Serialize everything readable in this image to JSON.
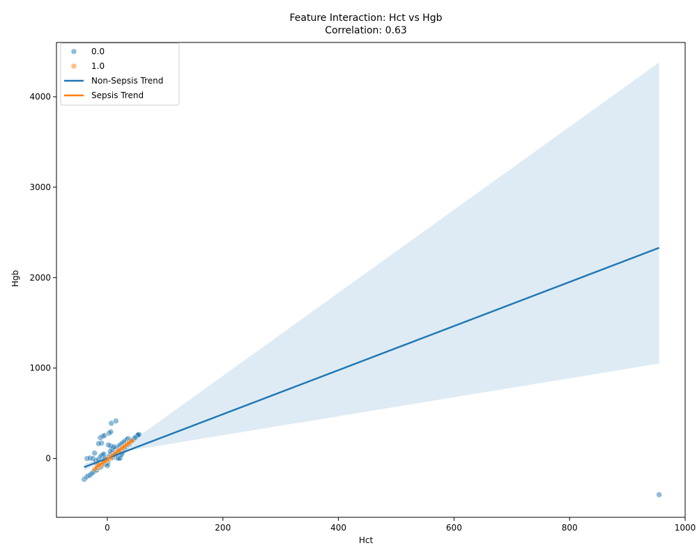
{
  "chart_data": {
    "type": "scatter",
    "title": "Feature Interaction: Hct vs Hgb",
    "subtitle": "Correlation: 0.63",
    "xlabel": "Hct",
    "ylabel": "Hgb",
    "xlim": [
      -88,
      1000
    ],
    "ylim": [
      -650,
      4600
    ],
    "xticks": [
      0,
      200,
      400,
      600,
      800,
      1000
    ],
    "yticks": [
      0,
      1000,
      2000,
      3000,
      4000
    ],
    "grid": false,
    "legend_position": "upper-left",
    "legend": [
      {
        "label": "0.0",
        "kind": "marker",
        "color": "#1f77b4"
      },
      {
        "label": "1.0",
        "kind": "marker",
        "color": "#ff7f0e"
      },
      {
        "label": "Non-Sepsis Trend",
        "kind": "line",
        "color": "#1f77b4"
      },
      {
        "label": "Sepsis Trend",
        "kind": "line",
        "color": "#ff7f0e"
      }
    ],
    "series": [
      {
        "label": "0.0",
        "color": "#1f77b4",
        "points": [
          [
            -40,
            -230
          ],
          [
            -36,
            -205
          ],
          [
            -33,
            -190
          ],
          [
            -30,
            -185
          ],
          [
            -28,
            -170
          ],
          [
            -26,
            -160
          ],
          [
            -24,
            -150
          ],
          [
            -22,
            -140
          ],
          [
            -20,
            -130
          ],
          [
            -18,
            -125
          ],
          [
            -16,
            -110
          ],
          [
            -14,
            -100
          ],
          [
            -12,
            -95
          ],
          [
            -10,
            -85
          ],
          [
            -8,
            -70
          ],
          [
            -6,
            -60
          ],
          [
            -4,
            -50
          ],
          [
            -2,
            -40
          ],
          [
            0,
            -30
          ],
          [
            2,
            -20
          ],
          [
            -35,
            0
          ],
          [
            -30,
            5
          ],
          [
            -25,
            0
          ],
          [
            -22,
            60
          ],
          [
            -20,
            -20
          ],
          [
            -15,
            -10
          ],
          [
            -12,
            20
          ],
          [
            -10,
            30
          ],
          [
            -8,
            40
          ],
          [
            -6,
            50
          ],
          [
            -5,
            -5
          ],
          [
            -3,
            10
          ],
          [
            -1,
            0
          ],
          [
            1,
            -60
          ],
          [
            3,
            15
          ],
          [
            4,
            30
          ],
          [
            6,
            45
          ],
          [
            8,
            60
          ],
          [
            10,
            75
          ],
          [
            12,
            90
          ],
          [
            14,
            100
          ],
          [
            16,
            110
          ],
          [
            18,
            120
          ],
          [
            20,
            140
          ],
          [
            22,
            150
          ],
          [
            24,
            160
          ],
          [
            26,
            170
          ],
          [
            28,
            180
          ],
          [
            30,
            190
          ],
          [
            32,
            200
          ],
          [
            34,
            210
          ],
          [
            36,
            220
          ],
          [
            38,
            195
          ],
          [
            40,
            205
          ],
          [
            12,
            20
          ],
          [
            14,
            30
          ],
          [
            16,
            10
          ],
          [
            18,
            5
          ],
          [
            20,
            0
          ],
          [
            22,
            5
          ],
          [
            5,
            80
          ],
          [
            8,
            100
          ],
          [
            10,
            120
          ],
          [
            12,
            130
          ],
          [
            6,
            140
          ],
          [
            2,
            150
          ],
          [
            -10,
            170
          ],
          [
            -15,
            165
          ],
          [
            -12,
            230
          ],
          [
            -8,
            245
          ],
          [
            -5,
            255
          ],
          [
            3,
            280
          ],
          [
            6,
            295
          ],
          [
            7,
            390
          ],
          [
            15,
            415
          ],
          [
            22,
            90
          ],
          [
            25,
            100
          ],
          [
            28,
            110
          ],
          [
            30,
            120
          ],
          [
            32,
            130
          ],
          [
            35,
            150
          ],
          [
            38,
            160
          ],
          [
            42,
            190
          ],
          [
            45,
            210
          ],
          [
            50,
            245
          ],
          [
            52,
            255
          ],
          [
            54,
            265
          ],
          [
            55,
            265
          ],
          [
            53,
            260
          ],
          [
            48,
            230
          ],
          [
            26,
            60
          ],
          [
            24,
            40
          ],
          [
            18,
            60
          ],
          [
            15,
            40
          ],
          [
            9,
            15
          ],
          [
            7,
            5
          ],
          [
            0,
            -80
          ],
          [
            -2,
            -60
          ],
          [
            -4,
            -30
          ],
          [
            -18,
            -60
          ],
          [
            955,
            -400
          ]
        ]
      },
      {
        "label": "1.0",
        "color": "#ff7f0e",
        "points": [
          [
            -22,
            -120
          ],
          [
            -18,
            -100
          ],
          [
            -14,
            -85
          ],
          [
            -10,
            -65
          ],
          [
            -6,
            -45
          ],
          [
            -2,
            -25
          ],
          [
            2,
            -5
          ],
          [
            6,
            15
          ],
          [
            10,
            35
          ],
          [
            14,
            55
          ],
          [
            18,
            75
          ],
          [
            22,
            95
          ],
          [
            26,
            115
          ],
          [
            30,
            135
          ],
          [
            34,
            155
          ],
          [
            38,
            175
          ],
          [
            42,
            195
          ],
          [
            -15,
            -70
          ],
          [
            0,
            -10
          ],
          [
            20,
            90
          ]
        ]
      }
    ],
    "trend_lines": [
      {
        "label": "Non-Sepsis Trend",
        "color": "#1f77b4",
        "x": [
          -40,
          955
        ],
        "y": [
          -95,
          2330
        ]
      },
      {
        "label": "Sepsis Trend",
        "color": "#ff7f0e",
        "x": [
          -22,
          45
        ],
        "y": [
          -110,
          210
        ]
      }
    ],
    "confidence_band": {
      "color": "#1f77b4",
      "x": [
        -40,
        0,
        40,
        955
      ],
      "upper": [
        -60,
        40,
        180,
        4380
      ],
      "lower": [
        -130,
        -20,
        90,
        1050
      ]
    }
  }
}
